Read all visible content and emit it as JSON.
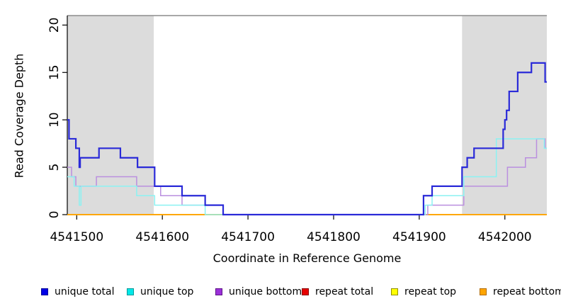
{
  "chart_data": {
    "type": "step-line",
    "title": "",
    "xlabel": "Coordinate in Reference Genome",
    "ylabel": "Read Coverage Depth",
    "xlim": [
      4541489,
      4542049
    ],
    "ylim": [
      0,
      21
    ],
    "x_ticks": [
      4541500,
      4541600,
      4541700,
      4541800,
      4541900,
      4542000
    ],
    "y_ticks": [
      0,
      5,
      10,
      15,
      20
    ],
    "grid": false,
    "legend_position": "bottom",
    "cap_line": {
      "value": 21,
      "color": "#8C8C8C"
    },
    "shade_color": "#DCDCDC",
    "shaded_regions": [
      {
        "from": 4541489,
        "to": 4541590
      },
      {
        "from": 4541950,
        "to": 4542049
      }
    ],
    "draw_order": [
      "repeat_total",
      "repeat_top",
      "repeat_bottom",
      "unique_bottom",
      "unique_top",
      "unique_total"
    ],
    "series": [
      {
        "id": "unique_total",
        "label": "unique total",
        "color": "#0000E6",
        "swatch_border": "#000099",
        "line_color": "#2A2AD8",
        "points": [
          [
            4541489,
            10
          ],
          [
            4541491,
            8
          ],
          [
            4541499,
            7
          ],
          [
            4541503,
            5
          ],
          [
            4541504,
            6
          ],
          [
            4541526,
            7
          ],
          [
            4541551,
            6
          ],
          [
            4541571,
            5
          ],
          [
            4541591,
            3
          ],
          [
            4541623,
            2
          ],
          [
            4541650,
            1
          ],
          [
            4541671,
            0
          ],
          [
            4541905,
            2
          ],
          [
            4541915,
            3
          ],
          [
            4541950,
            5
          ],
          [
            4541956,
            6
          ],
          [
            4541964,
            7
          ],
          [
            4541998,
            9
          ],
          [
            4542000,
            10
          ],
          [
            4542002,
            11
          ],
          [
            4542005,
            13
          ],
          [
            4542015,
            15
          ],
          [
            4542031,
            16
          ],
          [
            4542047,
            14
          ],
          [
            4542049,
            14
          ]
        ]
      },
      {
        "id": "unique_top",
        "label": "unique top",
        "color": "#00E8E8",
        "swatch_border": "#009999",
        "line_color": "#8BF2F2",
        "points": [
          [
            4541489,
            4
          ],
          [
            4541497,
            3
          ],
          [
            4541503,
            1
          ],
          [
            4541505,
            3
          ],
          [
            4541570,
            2
          ],
          [
            4541591,
            1
          ],
          [
            4541650,
            0
          ],
          [
            4541907,
            1
          ],
          [
            4541915,
            2
          ],
          [
            4541952,
            4
          ],
          [
            4541990,
            8
          ],
          [
            4542046,
            7
          ],
          [
            4542049,
            7
          ]
        ]
      },
      {
        "id": "unique_bottom",
        "label": "unique bottom",
        "color": "#9B30D9",
        "swatch_border": "#5E1487",
        "line_color": "#BA8FDF",
        "points": [
          [
            4541489,
            5
          ],
          [
            4541494,
            4
          ],
          [
            4541499,
            3
          ],
          [
            4541523,
            4
          ],
          [
            4541570,
            3
          ],
          [
            4541598,
            2
          ],
          [
            4541623,
            1
          ],
          [
            4541671,
            0
          ],
          [
            4541910,
            1
          ],
          [
            4541952,
            3
          ],
          [
            4542003,
            5
          ],
          [
            4542024,
            6
          ],
          [
            4542037,
            8
          ],
          [
            4542047,
            7
          ],
          [
            4542049,
            7
          ]
        ]
      },
      {
        "id": "repeat_total",
        "label": "repeat total",
        "color": "#E60000",
        "swatch_border": "#8B0000",
        "line_color": "#E60000",
        "points": [
          [
            4541489,
            0
          ],
          [
            4542049,
            0
          ]
        ]
      },
      {
        "id": "repeat_top",
        "label": "repeat top",
        "color": "#FFFF00",
        "swatch_border": "#8F8F00",
        "line_color": "#FFF200",
        "points": [
          [
            4541489,
            0
          ],
          [
            4542049,
            0
          ]
        ]
      },
      {
        "id": "repeat_bottom",
        "label": "repeat bottom",
        "color": "#FFA500",
        "swatch_border": "#B36B00",
        "line_color": "#FFA500",
        "points": [
          [
            4541489,
            0
          ],
          [
            4542049,
            0
          ]
        ]
      }
    ]
  }
}
